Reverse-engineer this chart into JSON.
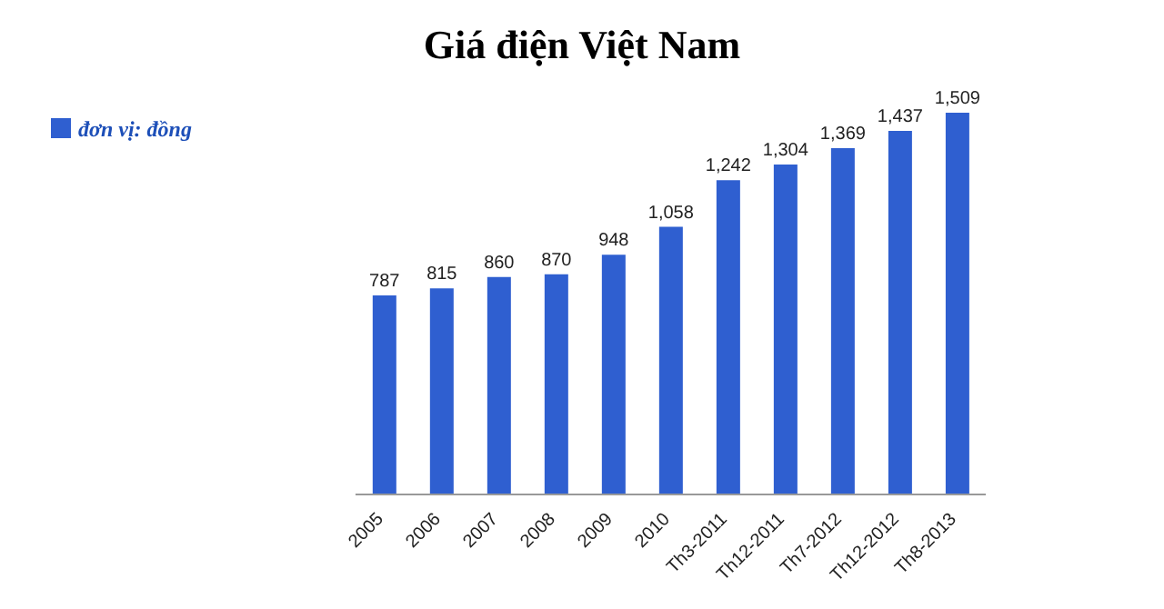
{
  "chart_data": {
    "type": "bar",
    "title": "Giá điện Việt Nam",
    "categories": [
      "2005",
      "2006",
      "2007",
      "2008",
      "2009",
      "2010",
      "Th3-2011",
      "Th12-2011",
      "Th7-2012",
      "Th12-2012",
      "Th8-2013"
    ],
    "series": [
      {
        "name": "đơn vị: đồng",
        "color": "#2f5fd0",
        "values": [
          787,
          815,
          860,
          870,
          948,
          1058,
          1242,
          1304,
          1369,
          1437,
          1509
        ],
        "value_labels": [
          "787",
          "815",
          "860",
          "870",
          "948",
          "1,058",
          "1,242",
          "1,304",
          "1,369",
          "1,437",
          "1,509"
        ]
      }
    ],
    "legend": "top left",
    "grid": false
  }
}
